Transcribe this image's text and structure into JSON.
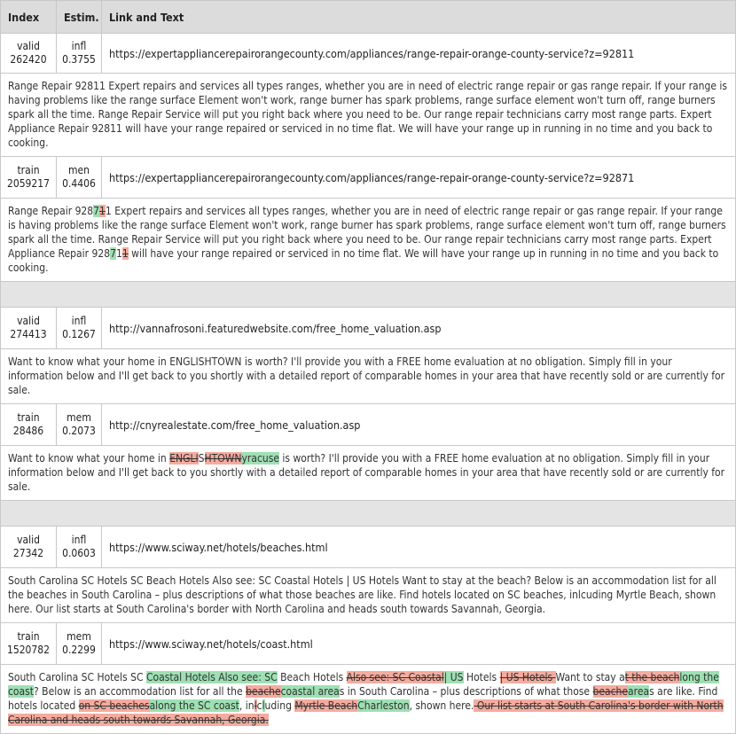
{
  "headers": [
    "Index",
    "Estim.",
    "Link and Text"
  ],
  "groups": [
    {
      "valid": {
        "split": "valid",
        "id": "262420",
        "label": "infl",
        "score": "0.3755",
        "url": "https://expertappliancerepairorangecounty.com/appliances/range-repair-orange-county-service?z=92811",
        "text": "Range Repair 92811 Expert repairs and services all types ranges, whether you are in need of electric range repair or gas range repair. If your range is having problems like the range surface Element won't work, range burner has spark problems, range surface element won't turn off, range burners spark all the time. Range Repair Service will put you right back where you need to be. Our range repair technicians carry most range parts. Expert Appliance Repair 92811 will have your range repaired or serviced in no time flat. We will have your range up in running in no time and you back to cooking."
      },
      "train": {
        "split": "train",
        "id": "2059217",
        "label": "men",
        "score": "0.4406",
        "url": "https://expertappliancerepairorangecounty.com/appliances/range-repair-orange-county-service?z=92871",
        "segments": [
          {
            "t": "Range Repair 928",
            "k": "same"
          },
          {
            "t": "7",
            "k": "add"
          },
          {
            "t": "1",
            "k": "del"
          },
          {
            "t": "1 Expert repairs and services all types ranges, whether you are in need of electric range repair or gas range repair. If your range is having problems like the range surface Element won't work, range burner has spark problems, range surface element won't turn off, range burners spark all the time. Range Repair Service will put you right back where you need to be. Our range repair technicians carry most range parts. Expert Appliance Repair 928",
            "k": "same"
          },
          {
            "t": "7",
            "k": "add"
          },
          {
            "t": "1",
            "k": "same"
          },
          {
            "t": "1",
            "k": "del"
          },
          {
            "t": " will have your range repaired or serviced in no time flat. We will have your range up in running in no time and you back to cooking.",
            "k": "same"
          }
        ]
      }
    },
    {
      "valid": {
        "split": "valid",
        "id": "274413",
        "label": "infl",
        "score": "0.1267",
        "url": "http://vannafrosoni.featuredwebsite.com/free_home_valuation.asp",
        "text": "Want to know what your home in ENGLISHTOWN is worth? I'll provide you with a FREE home evaluation at no obligation. Simply fill in your information below and I'll get back to you shortly with a detailed report of comparable homes in your area that have recently sold or are currently for sale."
      },
      "train": {
        "split": "train",
        "id": "28486",
        "label": "mem",
        "score": "0.2073",
        "url": "http://cnyrealestate.com/free_home_valuation.asp",
        "segments": [
          {
            "t": "Want to know what your home in ",
            "k": "same"
          },
          {
            "t": "ENGLI",
            "k": "del"
          },
          {
            "t": "S",
            "k": "same"
          },
          {
            "t": "HTOWN",
            "k": "del"
          },
          {
            "t": "yracuse",
            "k": "add"
          },
          {
            "t": " is worth? I'll provide you with a FREE home evaluation at no obligation. Simply fill in your information below and I'll get back to you shortly with a detailed report of comparable homes in your area that have recently sold or are currently for sale.",
            "k": "same"
          }
        ]
      }
    },
    {
      "valid": {
        "split": "valid",
        "id": "27342",
        "label": "infl",
        "score": "0.0603",
        "url": "https://www.sciway.net/hotels/beaches.html",
        "text": "South Carolina SC Hotels SC Beach Hotels Also see: SC Coastal Hotels | US Hotels Want to stay at the beach? Below is an accommodation list for all the beaches in South Carolina – plus descriptions of what those beaches are like. Find hotels located on SC beaches, inlcuding Myrtle Beach, shown here. Our list starts at South Carolina's border with North Carolina and heads south towards Savannah, Georgia."
      },
      "train": {
        "split": "train",
        "id": "1520782",
        "label": "mem",
        "score": "0.2299",
        "url": "https://www.sciway.net/hotels/coast.html",
        "segments": [
          {
            "t": "South Carolina SC Hotels SC ",
            "k": "same"
          },
          {
            "t": "Coastal Hotels Also see: SC",
            "k": "add"
          },
          {
            "t": " Beach Hotels ",
            "k": "same"
          },
          {
            "t": "Also see: SC Coastal",
            "k": "del"
          },
          {
            "t": "| US",
            "k": "add"
          },
          {
            "t": " Hotels ",
            "k": "same"
          },
          {
            "t": "| US Hotels ",
            "k": "del"
          },
          {
            "t": "Want to stay a",
            "k": "same"
          },
          {
            "t": "t the beach",
            "k": "del"
          },
          {
            "t": "long the coast",
            "k": "add"
          },
          {
            "t": "? Below is an accommodation list for all the ",
            "k": "same"
          },
          {
            "t": "beache",
            "k": "del"
          },
          {
            "t": "coastal area",
            "k": "add"
          },
          {
            "t": "s in South Carolina – plus descriptions of what those ",
            "k": "same"
          },
          {
            "t": "beache",
            "k": "del"
          },
          {
            "t": "area",
            "k": "add"
          },
          {
            "t": "s are like. Find hotels located ",
            "k": "same"
          },
          {
            "t": "on SC beaches",
            "k": "del"
          },
          {
            "t": "along the SC coast",
            "k": "add"
          },
          {
            "t": ", in",
            "k": "same"
          },
          {
            "t": "l",
            "k": "del"
          },
          {
            "t": "c",
            "k": "same"
          },
          {
            "t": "l",
            "k": "add"
          },
          {
            "t": "uding ",
            "k": "same"
          },
          {
            "t": "Myrtle Beach",
            "k": "del"
          },
          {
            "t": "Charleston",
            "k": "add"
          },
          {
            "t": ", shown here.",
            "k": "same"
          },
          {
            "t": " Our list starts at South Carolina's border with North Carolina and heads south towards Savannah, Georgia.",
            "k": "del"
          }
        ]
      }
    }
  ]
}
